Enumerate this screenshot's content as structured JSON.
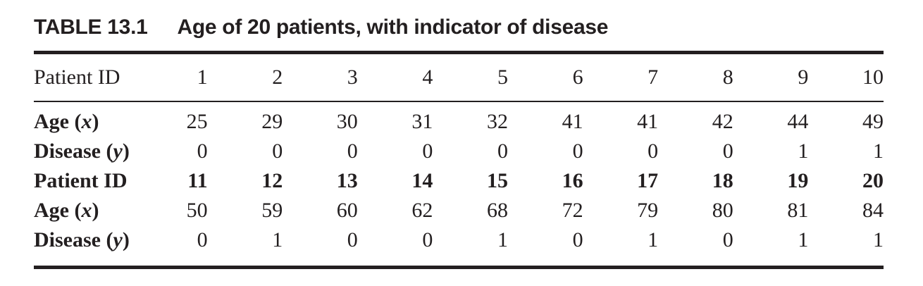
{
  "title": {
    "number": "TABLE 13.1",
    "caption": "Age of 20 patients, with indicator of disease"
  },
  "colors": {
    "text": "#231f20",
    "background": "#ffffff",
    "rule": "#231f20"
  },
  "table": {
    "header_row": {
      "label": "Patient ID",
      "values": [
        "1",
        "2",
        "3",
        "4",
        "5",
        "6",
        "7",
        "8",
        "9",
        "10"
      ]
    },
    "body_rows": [
      {
        "label": "Age",
        "var": "x",
        "values_bold": false,
        "values": [
          "25",
          "29",
          "30",
          "31",
          "32",
          "41",
          "41",
          "42",
          "44",
          "49"
        ]
      },
      {
        "label": "Disease",
        "var": "y",
        "values_bold": false,
        "values": [
          "0",
          "0",
          "0",
          "0",
          "0",
          "0",
          "0",
          "0",
          "1",
          "1"
        ]
      },
      {
        "label": "Patient ID",
        "var": null,
        "values_bold": true,
        "values": [
          "11",
          "12",
          "13",
          "14",
          "15",
          "16",
          "17",
          "18",
          "19",
          "20"
        ]
      },
      {
        "label": "Age",
        "var": "x",
        "values_bold": false,
        "values": [
          "50",
          "59",
          "60",
          "62",
          "68",
          "72",
          "79",
          "80",
          "81",
          "84"
        ]
      },
      {
        "label": "Disease",
        "var": "y",
        "values_bold": false,
        "values": [
          "0",
          "1",
          "0",
          "0",
          "1",
          "0",
          "1",
          "0",
          "1",
          "1"
        ]
      }
    ]
  }
}
